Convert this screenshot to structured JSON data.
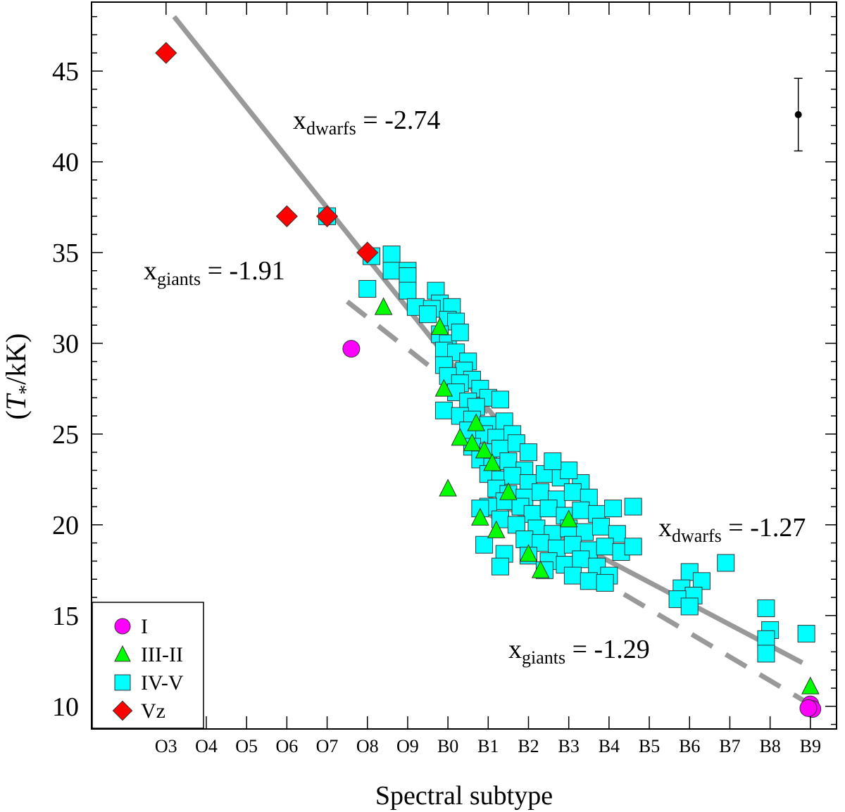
{
  "chart_data": {
    "type": "scatter",
    "xlabel": "Spectral subtype",
    "ylabel_prefix": "(",
    "ylabel_symbol": "T",
    "ylabel_sub": "*",
    "ylabel_suffix": "/kK)",
    "x_ticks": [
      "O3",
      "O4",
      "O5",
      "O6",
      "O7",
      "O8",
      "O9",
      "B0",
      "B1",
      "B2",
      "B3",
      "B4",
      "B5",
      "B6",
      "B7",
      "B8",
      "B9"
    ],
    "xlim": [
      -1.85,
      16.65
    ],
    "ylim": [
      8.75,
      48.8
    ],
    "y_ticks": [
      10,
      15,
      20,
      25,
      30,
      35,
      40,
      45
    ],
    "grid": false,
    "legend_position": "bottom-left",
    "colors": {
      "I": "#ff00ff",
      "III-II": "#00ff00",
      "IV-V": "#00ffff",
      "Vz": "#ff0000",
      "fit": "#999999"
    },
    "error_bar": {
      "x": 15.7,
      "y": 42.6,
      "yerr": 2.0
    },
    "series": [
      {
        "name": "I",
        "marker": "circle",
        "points": [
          [
            4.6,
            29.7
          ],
          [
            16.0,
            10.1
          ],
          [
            16.05,
            9.85
          ],
          [
            15.95,
            9.9
          ]
        ]
      },
      {
        "name": "III-II",
        "marker": "triangle",
        "points": [
          [
            5.4,
            32.0
          ],
          [
            6.8,
            30.9
          ],
          [
            6.9,
            27.5
          ],
          [
            7.3,
            24.8
          ],
          [
            7.0,
            22.0
          ],
          [
            7.6,
            24.5
          ],
          [
            7.9,
            24.1
          ],
          [
            8.1,
            23.4
          ],
          [
            7.8,
            20.4
          ],
          [
            8.2,
            19.7
          ],
          [
            9.0,
            18.4
          ],
          [
            9.3,
            17.5
          ],
          [
            10.0,
            20.3
          ],
          [
            16.0,
            11.1
          ],
          [
            7.7,
            25.6
          ],
          [
            8.5,
            21.8
          ]
        ]
      },
      {
        "name": "IV-V",
        "marker": "square",
        "points": [
          [
            4.0,
            37.0
          ],
          [
            5.1,
            34.8
          ],
          [
            5.6,
            34.9
          ],
          [
            5.6,
            34.0
          ],
          [
            6.0,
            34.0
          ],
          [
            6.0,
            33.7
          ],
          [
            5.0,
            33.0
          ],
          [
            6.7,
            32.9
          ],
          [
            6.8,
            32.2
          ],
          [
            7.1,
            32.0
          ],
          [
            6.0,
            32.9
          ],
          [
            6.2,
            32.0
          ],
          [
            6.6,
            31.9
          ],
          [
            7.0,
            31.3
          ],
          [
            7.2,
            31.2
          ],
          [
            6.5,
            31.6
          ],
          [
            6.8,
            30.5
          ],
          [
            7.0,
            30.0
          ],
          [
            7.3,
            30.6
          ],
          [
            6.9,
            29.6
          ],
          [
            7.2,
            29.5
          ],
          [
            7.5,
            29.0
          ],
          [
            6.9,
            28.8
          ],
          [
            7.4,
            28.5
          ],
          [
            7.6,
            28.0
          ],
          [
            7.0,
            28.2
          ],
          [
            7.3,
            27.8
          ],
          [
            7.8,
            27.5
          ],
          [
            8.0,
            27.0
          ],
          [
            7.2,
            27.3
          ],
          [
            7.5,
            26.8
          ],
          [
            7.7,
            26.5
          ],
          [
            8.3,
            26.9
          ],
          [
            6.9,
            26.3
          ],
          [
            7.3,
            26.0
          ],
          [
            7.6,
            25.8
          ],
          [
            8.0,
            25.5
          ],
          [
            8.4,
            25.7
          ],
          [
            7.5,
            25.2
          ],
          [
            7.9,
            25.0
          ],
          [
            8.2,
            24.8
          ],
          [
            8.6,
            25.0
          ],
          [
            7.6,
            24.3
          ],
          [
            8.0,
            24.0
          ],
          [
            8.3,
            24.2
          ],
          [
            8.7,
            24.5
          ],
          [
            9.0,
            24.0
          ],
          [
            7.8,
            23.6
          ],
          [
            8.1,
            23.2
          ],
          [
            8.5,
            23.5
          ],
          [
            8.9,
            23.0
          ],
          [
            8.0,
            22.8
          ],
          [
            8.3,
            22.5
          ],
          [
            8.6,
            22.7
          ],
          [
            9.0,
            22.3
          ],
          [
            9.4,
            22.8
          ],
          [
            9.8,
            22.6
          ],
          [
            10.3,
            22.3
          ],
          [
            10.0,
            23.0
          ],
          [
            9.6,
            23.5
          ],
          [
            8.2,
            22.0
          ],
          [
            8.5,
            21.7
          ],
          [
            8.9,
            21.5
          ],
          [
            9.3,
            21.8
          ],
          [
            9.7,
            21.4
          ],
          [
            10.1,
            21.8
          ],
          [
            10.5,
            21.5
          ],
          [
            8.4,
            21.3
          ],
          [
            8.8,
            21.0
          ],
          [
            9.1,
            20.6
          ],
          [
            9.5,
            20.9
          ],
          [
            9.9,
            20.5
          ],
          [
            10.3,
            20.8
          ],
          [
            10.7,
            20.6
          ],
          [
            11.1,
            20.9
          ],
          [
            11.6,
            21.0
          ],
          [
            8.0,
            21.0
          ],
          [
            7.8,
            20.9
          ],
          [
            8.3,
            20.3
          ],
          [
            8.7,
            20.0
          ],
          [
            9.2,
            19.8
          ],
          [
            9.6,
            19.5
          ],
          [
            10.0,
            19.8
          ],
          [
            10.4,
            19.6
          ],
          [
            10.8,
            19.9
          ],
          [
            11.2,
            19.5
          ],
          [
            8.9,
            19.2
          ],
          [
            9.3,
            19.0
          ],
          [
            9.7,
            18.7
          ],
          [
            10.1,
            18.9
          ],
          [
            10.5,
            18.6
          ],
          [
            10.9,
            18.8
          ],
          [
            11.3,
            18.5
          ],
          [
            11.6,
            18.8
          ],
          [
            7.9,
            18.9
          ],
          [
            8.4,
            18.4
          ],
          [
            9.0,
            18.3
          ],
          [
            9.5,
            18.0
          ],
          [
            9.9,
            17.8
          ],
          [
            10.3,
            18.1
          ],
          [
            10.7,
            17.7
          ],
          [
            11.0,
            17.2
          ],
          [
            8.3,
            17.7
          ],
          [
            9.4,
            17.5
          ],
          [
            10.1,
            17.2
          ],
          [
            10.5,
            16.9
          ],
          [
            10.9,
            16.8
          ],
          [
            13.0,
            17.4
          ],
          [
            13.3,
            16.9
          ],
          [
            12.8,
            16.5
          ],
          [
            13.1,
            16.1
          ],
          [
            12.7,
            15.9
          ],
          [
            13.0,
            15.5
          ],
          [
            13.9,
            17.9
          ],
          [
            14.9,
            15.4
          ],
          [
            15.0,
            14.2
          ],
          [
            14.9,
            13.7
          ],
          [
            14.9,
            12.9
          ],
          [
            15.9,
            14.0
          ]
        ]
      },
      {
        "name": "Vz",
        "marker": "diamond",
        "points": [
          [
            0.0,
            46.0
          ],
          [
            3.0,
            37.0
          ],
          [
            4.0,
            37.0
          ],
          [
            5.0,
            35.0
          ]
        ]
      }
    ],
    "fits": [
      {
        "group": "dwarfs",
        "style": "solid",
        "x_range": [
          0.2,
          9.0
        ],
        "label_sub": "dwarfs",
        "label_value": "= -2.74",
        "slope": -2.74
      },
      {
        "group": "giants",
        "style": "dashed",
        "x_range": [
          4.5,
          8.0
        ],
        "label_sub": "giants",
        "label_value": "= -1.91",
        "slope": -1.91
      },
      {
        "group": "dwarfs",
        "style": "solid",
        "x_range": [
          8.0,
          15.8
        ],
        "label_sub": "dwarfs",
        "label_value": "= -1.27",
        "slope": -1.27
      },
      {
        "group": "giants",
        "style": "dashed",
        "x_range": [
          8.0,
          16.0
        ],
        "label_sub": "giants",
        "label_value": "= -1.29",
        "slope": -1.29
      }
    ],
    "annotations": [
      {
        "main": "x",
        "sub": "dwarfs",
        "value": "= -2.74"
      },
      {
        "main": "x",
        "sub": "giants",
        "value": "= -1.91"
      },
      {
        "main": "x",
        "sub": "dwarfs",
        "value": "= -1.27"
      },
      {
        "main": "x",
        "sub": "giants",
        "value": "= -1.29"
      }
    ],
    "legend": [
      {
        "label": "I",
        "marker": "circle"
      },
      {
        "label": "III-II",
        "marker": "triangle"
      },
      {
        "label": "IV-V",
        "marker": "square"
      },
      {
        "label": "Vz",
        "marker": "diamond"
      }
    ]
  }
}
